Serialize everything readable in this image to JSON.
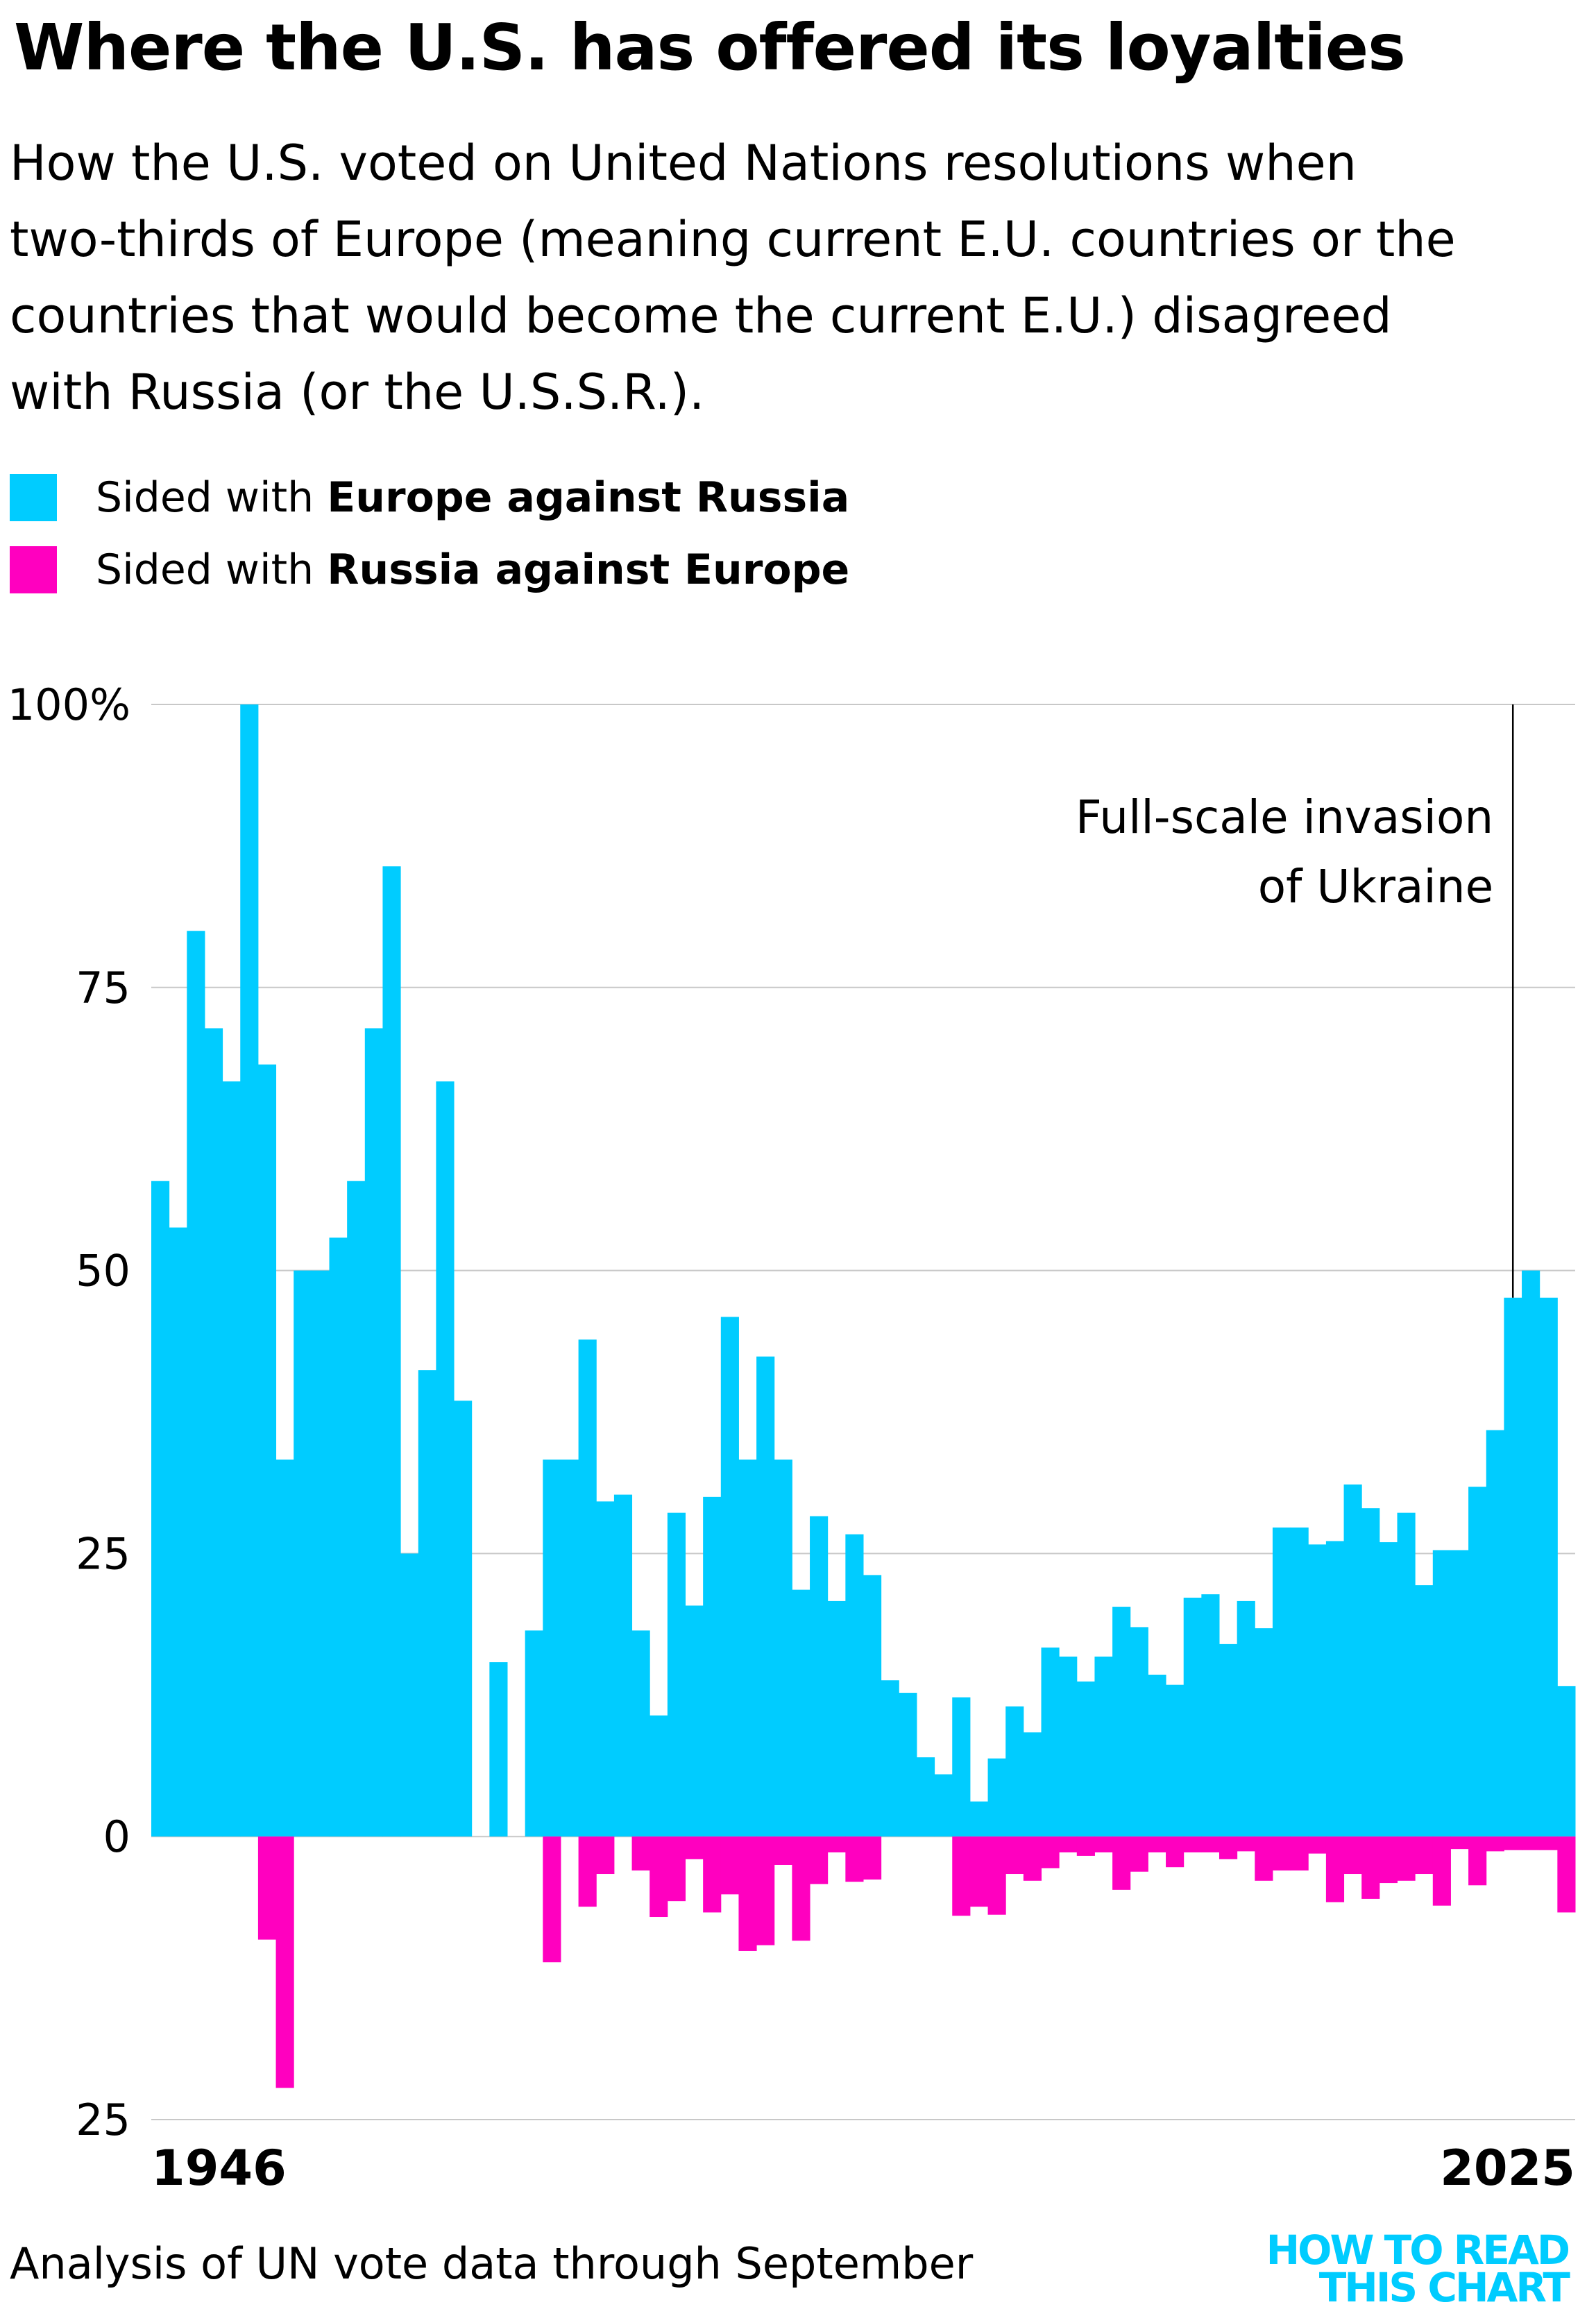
{
  "header": {
    "title": "Where the U.S. has offered its loyalties",
    "subtitle_lines": [
      "How the U.S. voted on United Nations resolutions when",
      "two-thirds of Europe (meaning current E.U. countries or the",
      "countries that would become the current E.U.) disagreed",
      "with Russia (or the U.S.S.R.)."
    ]
  },
  "legend": [
    {
      "prefix": "Sided with ",
      "bold": "Europe against Russia",
      "color": "#00ccff"
    },
    {
      "prefix": "Sided with ",
      "bold": "Russia against Europe",
      "color": "#ff00bf"
    }
  ],
  "footer": {
    "source": "Analysis of UN vote data through September",
    "logo_line1": "HOW TO READ",
    "logo_line2": "THIS CHART"
  },
  "chart_data": {
    "type": "bar",
    "title": "Where the U.S. has offered its loyalties",
    "xlabel": "",
    "ylabel": "",
    "ylim": [
      -25,
      100
    ],
    "yticks": [
      100,
      75,
      50,
      25,
      0,
      -25
    ],
    "ytick_labels": [
      "100%",
      "75",
      "50",
      "25",
      "0",
      "25"
    ],
    "x_tick_labels": [
      "1946",
      "2025"
    ],
    "grid": true,
    "legend_position": "top-left",
    "colors": {
      "europe": "#00ccff",
      "russia": "#ff00bf",
      "grid": "#c8c8c8",
      "annotation": "#000000"
    },
    "annotation": {
      "year": 2022,
      "text_lines": [
        "Full-scale invasion",
        "of Ukraine"
      ]
    },
    "categories": [
      1946,
      1947,
      1948,
      1949,
      1950,
      1951,
      1952,
      1953,
      1954,
      1955,
      1956,
      1957,
      1958,
      1959,
      1960,
      1961,
      1962,
      1963,
      1964,
      1965,
      1966,
      1967,
      1968,
      1969,
      1970,
      1971,
      1972,
      1973,
      1974,
      1975,
      1976,
      1977,
      1978,
      1979,
      1980,
      1981,
      1982,
      1983,
      1984,
      1985,
      1986,
      1987,
      1988,
      1989,
      1990,
      1991,
      1992,
      1993,
      1994,
      1995,
      1996,
      1997,
      1998,
      1999,
      2000,
      2001,
      2002,
      2003,
      2004,
      2005,
      2006,
      2007,
      2008,
      2009,
      2010,
      2011,
      2012,
      2013,
      2014,
      2015,
      2016,
      2017,
      2018,
      2019,
      2020,
      2021,
      2022,
      2023,
      2024,
      2025
    ],
    "series": [
      {
        "name": "Sided with Europe against Russia",
        "values": [
          57.9,
          53.8,
          80.0,
          71.4,
          66.7,
          100.0,
          68.2,
          33.3,
          50.0,
          50.0,
          52.9,
          57.9,
          71.4,
          85.7,
          25.0,
          41.2,
          66.7,
          38.5,
          0,
          15.4,
          0,
          18.2,
          33.3,
          33.3,
          43.9,
          29.6,
          30.2,
          18.2,
          10.7,
          28.6,
          20.4,
          30.0,
          45.9,
          33.3,
          42.4,
          33.3,
          21.8,
          28.3,
          20.8,
          26.7,
          23.1,
          13.8,
          12.7,
          7.0,
          5.5,
          12.3,
          3.1,
          6.9,
          11.5,
          9.2,
          16.7,
          15.9,
          13.7,
          15.9,
          20.3,
          18.5,
          14.3,
          13.4,
          21.1,
          21.4,
          17.0,
          20.8,
          18.4,
          27.3,
          27.3,
          25.8,
          26.1,
          31.1,
          29.0,
          26.0,
          28.6,
          22.2,
          25.3,
          25.3,
          30.9,
          35.9,
          47.6,
          50.0,
          47.6,
          13.3
        ]
      },
      {
        "name": "Sided with Russia against Europe",
        "values": [
          0,
          0,
          0,
          0,
          0,
          0,
          -9.1,
          -22.2,
          0,
          0,
          0,
          0,
          0,
          0,
          0,
          0,
          0,
          0,
          0,
          0,
          0,
          0,
          -11.1,
          0,
          -6.2,
          -3.3,
          0,
          -3.0,
          -7.1,
          -5.7,
          -2.0,
          -6.7,
          -5.1,
          -10.1,
          -9.6,
          -2.5,
          -9.2,
          -4.2,
          -1.4,
          -4.0,
          -3.8,
          0,
          0,
          0,
          0,
          -7.0,
          -6.2,
          -6.9,
          -3.3,
          -3.9,
          -2.8,
          -1.4,
          -1.7,
          -1.4,
          -4.7,
          -3.1,
          -1.4,
          -2.7,
          -1.4,
          -1.4,
          -2.0,
          -1.3,
          -3.9,
          -3.0,
          -3.0,
          -1.5,
          -5.8,
          -3.3,
          -5.5,
          -4.1,
          -3.9,
          -3.3,
          -6.1,
          -1.1,
          -4.3,
          -1.3,
          -1.2,
          -1.2,
          -1.2,
          -6.7
        ]
      }
    ]
  }
}
